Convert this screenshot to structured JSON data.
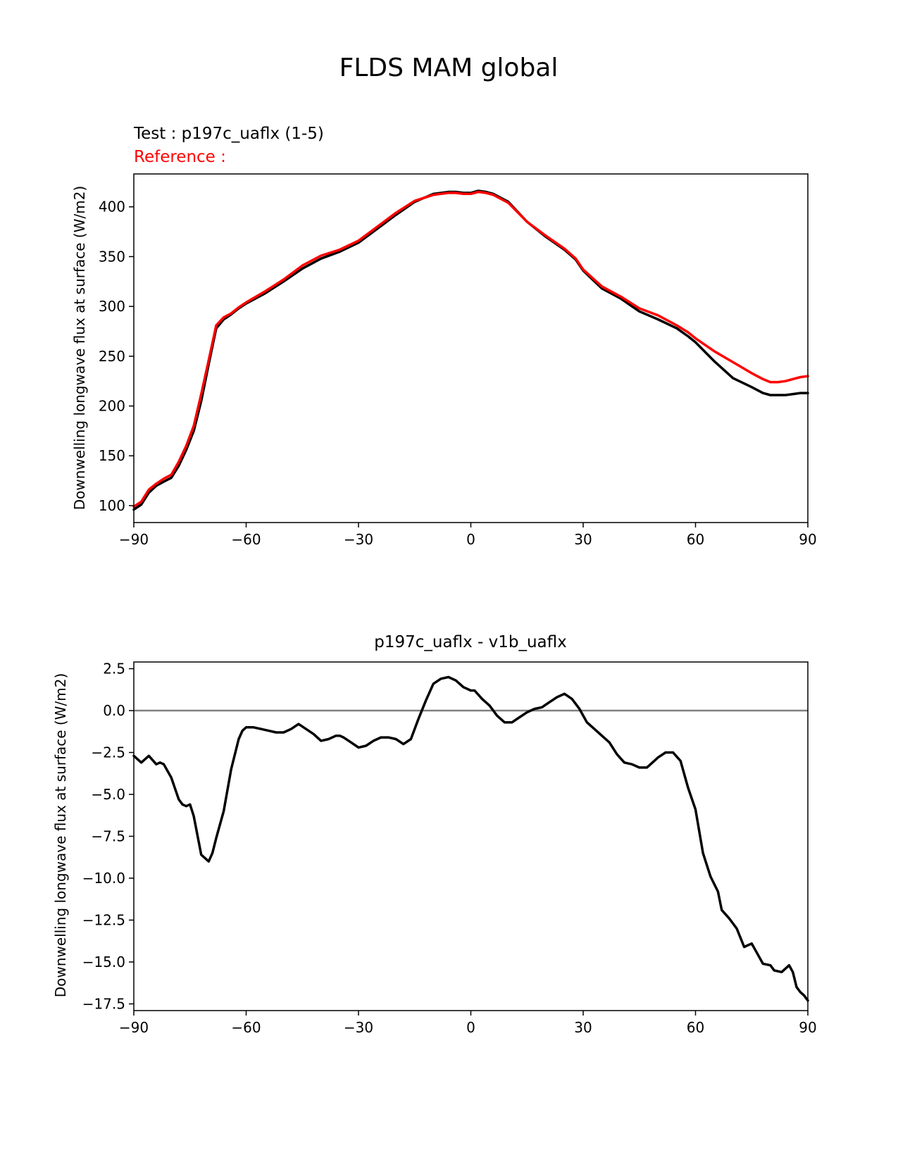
{
  "figure": {
    "suptitle": "FLDS MAM global"
  },
  "chart_data": [
    {
      "type": "line",
      "test_label": "Test : p197c_uaflx (1-5)",
      "reference_label": "Reference :",
      "title": "",
      "xlabel": "",
      "ylabel": "Downwelling longwave flux at surface (W/m2)",
      "xlim": [
        -90,
        90
      ],
      "ylim": [
        83,
        433
      ],
      "xticks": [
        -90,
        -60,
        -30,
        0,
        30,
        60,
        90
      ],
      "xtick_labels": [
        "−90",
        "−60",
        "−30",
        "0",
        "30",
        "60",
        "90"
      ],
      "yticks": [
        100,
        150,
        200,
        250,
        300,
        350,
        400
      ],
      "ytick_labels": [
        "100",
        "150",
        "200",
        "250",
        "300",
        "350",
        "400"
      ],
      "series": [
        {
          "role": "test",
          "color": "#000000",
          "x": [
            -90,
            -88,
            -86,
            -84,
            -82,
            -80,
            -78,
            -76,
            -74,
            -72,
            -70,
            -68,
            -66,
            -64,
            -62,
            -60,
            -55,
            -50,
            -45,
            -40,
            -35,
            -30,
            -25,
            -20,
            -15,
            -10,
            -6,
            -4,
            -2,
            0,
            2,
            4,
            6,
            10,
            15,
            20,
            25,
            28,
            30,
            35,
            40,
            45,
            50,
            55,
            58,
            60,
            65,
            70,
            75,
            78,
            80,
            82,
            84,
            86,
            88,
            90
          ],
          "values": [
            96,
            101,
            113,
            120,
            124,
            128,
            140,
            156,
            175,
            205,
            242,
            278,
            287,
            292,
            298,
            303,
            313,
            325,
            338,
            348,
            355,
            364,
            378,
            392,
            405,
            413,
            415,
            415,
            414,
            414,
            416,
            415,
            413,
            405,
            385,
            370,
            357,
            347,
            336,
            318,
            308,
            295,
            287,
            278,
            270,
            264,
            245,
            228,
            219,
            213,
            211,
            211,
            211,
            212,
            213,
            213
          ]
        },
        {
          "role": "reference",
          "color": "#ff0000",
          "x": [
            -90,
            -88,
            -86,
            -84,
            -82,
            -80,
            -78,
            -76,
            -74,
            -72,
            -70,
            -68,
            -66,
            -64,
            -62,
            -60,
            -55,
            -50,
            -45,
            -40,
            -35,
            -30,
            -25,
            -20,
            -15,
            -10,
            -6,
            -4,
            -2,
            0,
            2,
            4,
            6,
            10,
            15,
            20,
            25,
            28,
            30,
            35,
            40,
            45,
            50,
            55,
            58,
            60,
            65,
            70,
            75,
            78,
            80,
            82,
            84,
            86,
            88,
            90
          ],
          "values": [
            99,
            104,
            116,
            122,
            127,
            131,
            144,
            160,
            180,
            212,
            246,
            281,
            289,
            293,
            299,
            304,
            315,
            327,
            341,
            351,
            357,
            366,
            380,
            394,
            406,
            412,
            414,
            414,
            413,
            413,
            415,
            414,
            412,
            404,
            385,
            371,
            358,
            348,
            337,
            320,
            310,
            298,
            291,
            281,
            274,
            268,
            255,
            244,
            233,
            227,
            224,
            224,
            225,
            227,
            229,
            230
          ]
        }
      ]
    },
    {
      "type": "line",
      "title": "p197c_uaflx - v1b_uaflx",
      "xlabel": "",
      "ylabel": "Downwelling longwave flux at surface (W/m2)",
      "xlim": [
        -90,
        90
      ],
      "ylim": [
        -17.9,
        2.9
      ],
      "xticks": [
        -90,
        -60,
        -30,
        0,
        30,
        60,
        90
      ],
      "xtick_labels": [
        "−90",
        "−60",
        "−30",
        "0",
        "30",
        "60",
        "90"
      ],
      "yticks": [
        2.5,
        0.0,
        -2.5,
        -5.0,
        -7.5,
        -10.0,
        -12.5,
        -15.0,
        -17.5
      ],
      "ytick_labels": [
        "2.5",
        "0.0",
        "−2.5",
        "−5.0",
        "−7.5",
        "−10.0",
        "−12.5",
        "−15.0",
        "−17.5"
      ],
      "zero_line": {
        "y": 0,
        "color": "#808080"
      },
      "series": [
        {
          "role": "difference",
          "color": "#000000",
          "x": [
            -90,
            -88,
            -86,
            -84,
            -83,
            -82,
            -80,
            -78,
            -77,
            -76,
            -75,
            -74,
            -72,
            -70,
            -69,
            -68,
            -66,
            -64,
            -62,
            -61,
            -60,
            -58,
            -56,
            -54,
            -52,
            -50,
            -48,
            -46,
            -44,
            -42,
            -40,
            -38,
            -36,
            -35,
            -34,
            -32,
            -30,
            -28,
            -26,
            -24,
            -22,
            -20,
            -18,
            -16,
            -14,
            -12,
            -10,
            -8,
            -6,
            -4,
            -2,
            0,
            1,
            3,
            5,
            7,
            9,
            11,
            13,
            15,
            17,
            19,
            21,
            23,
            25,
            27,
            29,
            31,
            33,
            35,
            37,
            39,
            41,
            43,
            45,
            47,
            49,
            50,
            52,
            54,
            56,
            58,
            60,
            62,
            64,
            66,
            67,
            69,
            71,
            73,
            75,
            77,
            78,
            80,
            81,
            83,
            85,
            86,
            87,
            88,
            89,
            90
          ],
          "values": [
            -2.7,
            -3.1,
            -2.7,
            -3.2,
            -3.1,
            -3.2,
            -4.0,
            -5.3,
            -5.6,
            -5.7,
            -5.6,
            -6.3,
            -8.6,
            -9.0,
            -8.5,
            -7.6,
            -6.0,
            -3.5,
            -1.7,
            -1.2,
            -1.0,
            -1.0,
            -1.1,
            -1.2,
            -1.3,
            -1.3,
            -1.1,
            -0.8,
            -1.1,
            -1.4,
            -1.8,
            -1.7,
            -1.5,
            -1.5,
            -1.6,
            -1.9,
            -2.2,
            -2.1,
            -1.8,
            -1.6,
            -1.6,
            -1.7,
            -2.0,
            -1.7,
            -0.5,
            0.6,
            1.6,
            1.9,
            2.0,
            1.8,
            1.4,
            1.2,
            1.2,
            0.7,
            0.3,
            -0.3,
            -0.7,
            -0.7,
            -0.4,
            -0.1,
            0.1,
            0.2,
            0.5,
            0.8,
            1.0,
            0.7,
            0.1,
            -0.7,
            -1.1,
            -1.5,
            -1.9,
            -2.6,
            -3.1,
            -3.2,
            -3.4,
            -3.4,
            -3.0,
            -2.8,
            -2.5,
            -2.5,
            -3.0,
            -4.6,
            -5.9,
            -8.5,
            -9.9,
            -10.8,
            -11.9,
            -12.4,
            -13.0,
            -14.1,
            -13.9,
            -14.7,
            -15.1,
            -15.2,
            -15.5,
            -15.6,
            -15.2,
            -15.6,
            -16.5,
            -16.8,
            -17.0,
            -17.3
          ]
        }
      ]
    }
  ]
}
